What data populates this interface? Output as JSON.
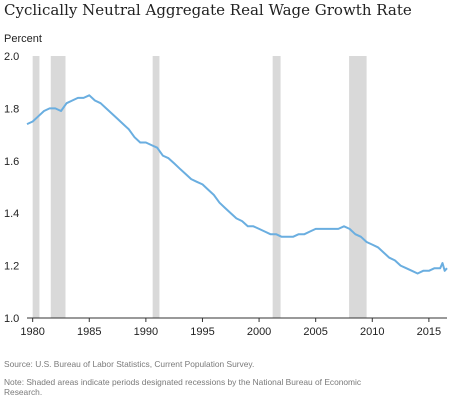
{
  "chart_data": {
    "type": "line",
    "title": "Cyclically Neutral Aggregate Real Wage Growth Rate",
    "ylabel": "Percent",
    "xlabel": "",
    "xlim": [
      1979.5,
      2016.6
    ],
    "ylim": [
      1.0,
      2.0
    ],
    "xticks": [
      1980,
      1985,
      1990,
      1995,
      2000,
      2005,
      2010,
      2015
    ],
    "yticks": [
      "1.0",
      "1.2",
      "1.4",
      "1.6",
      "1.8",
      "2.0"
    ],
    "grid": false,
    "line_color": "#6aaee0",
    "recession_color": "#d9d9d9",
    "recessions": [
      [
        1980.0,
        1980.6
      ],
      [
        1981.6,
        1982.9
      ],
      [
        1990.6,
        1991.2
      ],
      [
        2001.2,
        2001.9
      ],
      [
        2007.95,
        2009.5
      ]
    ],
    "series": [
      {
        "name": "",
        "x": [
          1979.5,
          1980.0,
          1980.5,
          1981.0,
          1981.5,
          1982.0,
          1982.5,
          1983.0,
          1983.5,
          1984.0,
          1984.5,
          1985.0,
          1985.5,
          1986.0,
          1986.5,
          1987.0,
          1987.5,
          1988.0,
          1988.5,
          1989.0,
          1989.5,
          1990.0,
          1990.5,
          1991.0,
          1991.5,
          1992.0,
          1992.5,
          1993.0,
          1993.5,
          1994.0,
          1994.5,
          1995.0,
          1995.5,
          1996.0,
          1996.5,
          1997.0,
          1997.5,
          1998.0,
          1998.5,
          1999.0,
          1999.5,
          2000.0,
          2000.5,
          2001.0,
          2001.5,
          2002.0,
          2002.5,
          2003.0,
          2003.5,
          2004.0,
          2004.5,
          2005.0,
          2005.5,
          2006.0,
          2006.5,
          2007.0,
          2007.5,
          2008.0,
          2008.5,
          2009.0,
          2009.5,
          2010.0,
          2010.5,
          2011.0,
          2011.5,
          2012.0,
          2012.5,
          2013.0,
          2013.5,
          2014.0,
          2014.5,
          2015.0,
          2015.5,
          2016.0,
          2016.2,
          2016.4,
          2016.6
        ],
        "values": [
          1.74,
          1.75,
          1.77,
          1.79,
          1.8,
          1.8,
          1.79,
          1.82,
          1.83,
          1.84,
          1.84,
          1.85,
          1.83,
          1.82,
          1.8,
          1.78,
          1.76,
          1.74,
          1.72,
          1.69,
          1.67,
          1.67,
          1.66,
          1.65,
          1.62,
          1.61,
          1.59,
          1.57,
          1.55,
          1.53,
          1.52,
          1.51,
          1.49,
          1.47,
          1.44,
          1.42,
          1.4,
          1.38,
          1.37,
          1.35,
          1.35,
          1.34,
          1.33,
          1.32,
          1.32,
          1.31,
          1.31,
          1.31,
          1.32,
          1.32,
          1.33,
          1.34,
          1.34,
          1.34,
          1.34,
          1.34,
          1.35,
          1.34,
          1.32,
          1.31,
          1.29,
          1.28,
          1.27,
          1.25,
          1.23,
          1.22,
          1.2,
          1.19,
          1.18,
          1.17,
          1.18,
          1.18,
          1.19,
          1.19,
          1.21,
          1.18,
          1.19
        ]
      }
    ]
  },
  "notes": {
    "source": "Source: U.S. Bureau of Labor Statistics, Current Population Survey.",
    "note": "Note: Shaded areas indicate periods designated recessions by the National Bureau of Economic Research."
  }
}
